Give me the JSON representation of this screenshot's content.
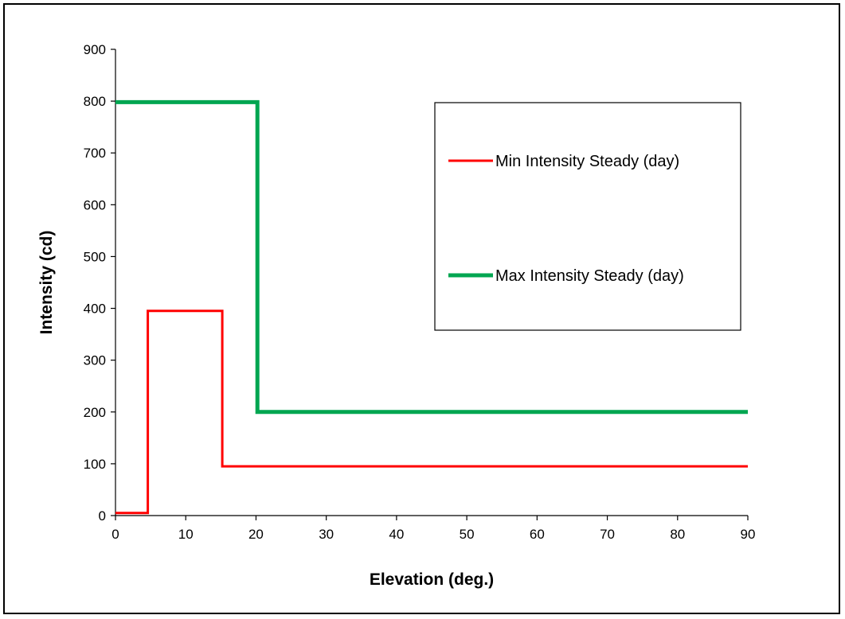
{
  "chart_data": {
    "type": "line",
    "step": true,
    "xlabel": "Elevation  (deg.)",
    "ylabel": "Intensity (cd)",
    "xlim": [
      0,
      90
    ],
    "ylim": [
      0,
      900
    ],
    "xticks": [
      0,
      10,
      20,
      30,
      40,
      50,
      60,
      70,
      80,
      90
    ],
    "yticks": [
      0,
      100,
      200,
      300,
      400,
      500,
      600,
      700,
      800,
      900
    ],
    "grid": false,
    "legend_position": "top-right",
    "series": [
      {
        "name": "Min Intensity Steady (day)",
        "color": "#ff0000",
        "x": [
          0,
          4.6,
          4.6,
          15.2,
          15.2,
          90
        ],
        "y": [
          5,
          5,
          395,
          395,
          95,
          95
        ]
      },
      {
        "name": "Max Intensity Steady (day)",
        "color": "#00a651",
        "x": [
          0,
          20.2,
          20.2,
          90
        ],
        "y": [
          798,
          798,
          200,
          200
        ]
      }
    ]
  }
}
